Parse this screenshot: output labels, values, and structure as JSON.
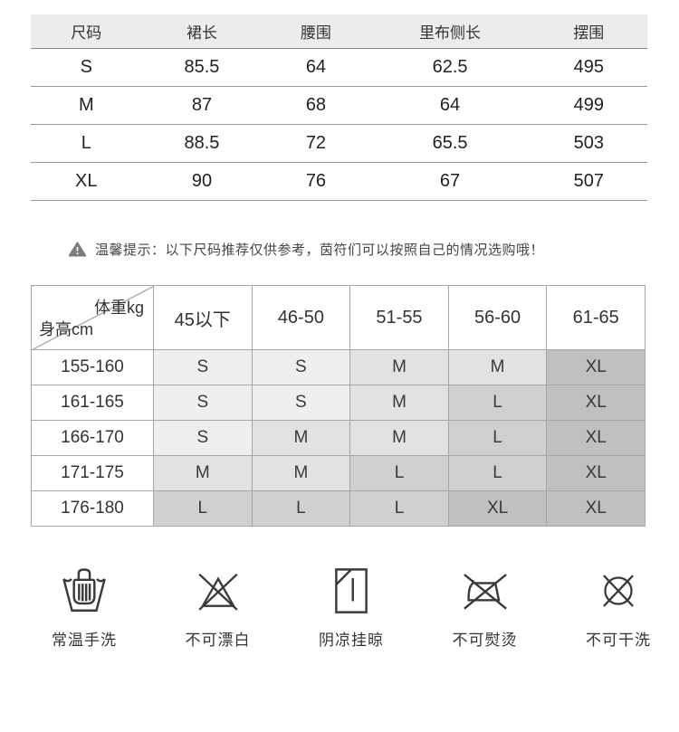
{
  "colors": {
    "header_bg": "#ececec",
    "matrix_border": "#a6a6a6",
    "warning_fill": "#7d7d7d",
    "shade_S": "#efefef",
    "shade_M": "#e2e2e2",
    "shade_L": "#d0d0d0",
    "shade_XL": "#c0c0c0"
  },
  "size_table": {
    "columns": [
      "尺码",
      "裙长",
      "腰围",
      "里布侧长",
      "摆围"
    ],
    "rows": [
      [
        "S",
        "85.5",
        "64",
        "62.5",
        "495"
      ],
      [
        "M",
        "87",
        "68",
        "64",
        "499"
      ],
      [
        "L",
        "88.5",
        "72",
        "65.5",
        "503"
      ],
      [
        "XL",
        "90",
        "76",
        "67",
        "507"
      ]
    ]
  },
  "tip": {
    "icon": "warning-triangle-icon",
    "text": "温馨提示：以下尺码推荐仅供参考，茵符们可以按照自己的情况选购哦！"
  },
  "size_recommendation": {
    "corner_top_right": "体重kg",
    "corner_bottom_left": "身高cm",
    "weight_columns": [
      "45以下",
      "46-50",
      "51-55",
      "56-60",
      "61-65"
    ],
    "height_rows": [
      "155-160",
      "161-165",
      "166-170",
      "171-175",
      "176-180"
    ],
    "cells": [
      [
        "S",
        "S",
        "M",
        "M",
        "XL"
      ],
      [
        "S",
        "S",
        "M",
        "L",
        "XL"
      ],
      [
        "S",
        "M",
        "M",
        "L",
        "XL"
      ],
      [
        "M",
        "M",
        "L",
        "L",
        "XL"
      ],
      [
        "L",
        "L",
        "L",
        "XL",
        "XL"
      ]
    ]
  },
  "care_instructions": [
    {
      "icon": "hand-wash-icon",
      "label": "常温手洗"
    },
    {
      "icon": "no-bleach-icon",
      "label": "不可漂白"
    },
    {
      "icon": "drip-dry-shade-icon",
      "label": "阴凉挂晾"
    },
    {
      "icon": "no-iron-icon",
      "label": "不可熨烫"
    },
    {
      "icon": "no-dry-clean-icon",
      "label": "不可干洗"
    }
  ]
}
